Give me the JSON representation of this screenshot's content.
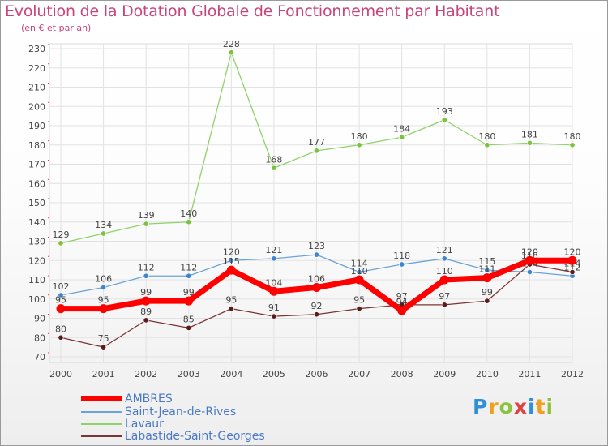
{
  "title": "Evolution de la Dotation Globale de Fonctionnement par Habitant",
  "subtitle": "(en € et par an)",
  "logo": {
    "text": "Proxiti",
    "letters": [
      "P",
      "r",
      "o",
      "x",
      "i",
      "t",
      "i"
    ],
    "colors": [
      "#2f8fd8",
      "#f0a020",
      "#8ac43f",
      "#e04040",
      "#2f8fd8",
      "#f0a020",
      "#8ac43f"
    ]
  },
  "chart_data": {
    "type": "line",
    "title": "Evolution de la Dotation Globale de Fonctionnement par Habitant",
    "subtitle": "(en € et par an)",
    "xlabel": "",
    "ylabel": "",
    "ylim": [
      70,
      230
    ],
    "yticks": [
      70,
      80,
      90,
      100,
      110,
      120,
      130,
      140,
      150,
      160,
      170,
      180,
      190,
      200,
      210,
      220,
      230
    ],
    "grid": true,
    "categories": [
      "2000",
      "2001",
      "2002",
      "2003",
      "2004",
      "2005",
      "2006",
      "2007",
      "2008",
      "2009",
      "2010",
      "2011",
      "2012"
    ],
    "series": [
      {
        "name": "Lavaur",
        "color": "#8fd26a",
        "marker": "#7cc23f",
        "width": 1.3,
        "values": [
          129,
          134,
          139,
          140,
          228,
          168,
          177,
          180,
          184,
          193,
          180,
          181,
          180
        ],
        "labels": [
          "129",
          "134",
          "139",
          "140",
          "228",
          "168",
          "177",
          "180",
          "184",
          "193",
          "180",
          "181",
          "180"
        ]
      },
      {
        "name": "Saint-Jean-de-Rives",
        "color": "#6aa3d8",
        "marker": "#3f86cf",
        "width": 1.3,
        "values": [
          102,
          106,
          112,
          112,
          120,
          121,
          123,
          114,
          118,
          121,
          115,
          114,
          112
        ],
        "labels": [
          "102",
          "106",
          "112",
          "112",
          "120",
          "121",
          "123",
          "114",
          "118",
          "121",
          "115",
          "114",
          "112"
        ]
      },
      {
        "name": "Labastide-Saint-Georges",
        "color": "#7a3535",
        "marker": "#5a1c1c",
        "width": 1.3,
        "values": [
          80,
          75,
          89,
          85,
          95,
          91,
          92,
          95,
          97,
          97,
          99,
          118,
          114
        ],
        "labels": [
          "80",
          "75",
          "89",
          "85",
          "95",
          "91",
          "92",
          "95",
          "97",
          "97",
          "99",
          "118",
          "114"
        ]
      },
      {
        "name": "AMBRES",
        "color": "#ff0000",
        "marker": "#ff0000",
        "width": 7,
        "values": [
          95,
          95,
          99,
          99,
          115,
          104,
          106,
          110,
          94,
          110,
          111,
          120,
          120
        ],
        "labels": [
          "95",
          "95",
          "99",
          "99",
          "115",
          "104",
          "106",
          "110",
          "94",
          "110",
          "111",
          "120",
          "120"
        ]
      }
    ],
    "legend": {
      "position": "bottom-left",
      "items": [
        "AMBRES",
        "Saint-Jean-de-Rives",
        "Lavaur",
        "Labastide-Saint-Georges"
      ]
    }
  }
}
